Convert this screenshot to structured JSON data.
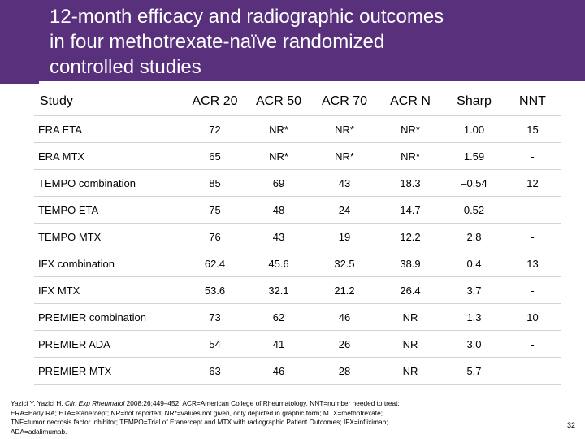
{
  "title": {
    "lines": [
      "12-month efficacy and radiographic outcomes",
      "in four methotrexate-naïve randomized",
      "controlled studies"
    ]
  },
  "colors": {
    "title_bar": "#58307c",
    "row_rule": "#d3d3d3"
  },
  "table": {
    "headers": [
      "Study",
      "ACR 20",
      "ACR 50",
      "ACR 70",
      "ACR N",
      "Sharp",
      "NNT"
    ],
    "rows": [
      [
        "ERA ETA",
        "72",
        "NR*",
        "NR*",
        "NR*",
        "1.00",
        "15"
      ],
      [
        "ERA MTX",
        "65",
        "NR*",
        "NR*",
        "NR*",
        "1.59",
        "-"
      ],
      [
        "TEMPO combination",
        "85",
        "69",
        "43",
        "18.3",
        "–0.54",
        "12"
      ],
      [
        "TEMPO ETA",
        "75",
        "48",
        "24",
        "14.7",
        "0.52",
        "-"
      ],
      [
        "TEMPO MTX",
        "76",
        "43",
        "19",
        "12.2",
        "2.8",
        "-"
      ],
      [
        "IFX combination",
        "62.4",
        "45.6",
        "32.5",
        "38.9",
        "0.4",
        "13"
      ],
      [
        "IFX MTX",
        "53.6",
        "32.1",
        "21.2",
        "26.4",
        "3.7",
        "-"
      ],
      [
        "PREMIER combination",
        "73",
        "62",
        "46",
        "NR",
        "1.3",
        "10"
      ],
      [
        "PREMIER ADA",
        "54",
        "41",
        "26",
        "NR",
        "3.0",
        "-"
      ],
      [
        "PREMIER MTX",
        "63",
        "46",
        "28",
        "NR",
        "5.7",
        "-"
      ]
    ]
  },
  "footnote": {
    "citation_authors": "Yazici Y, Yazici H. ",
    "citation_journal": "Clin Exp Rheumatol",
    "citation_rest": " 2008;26:449–452. ACR=American College of Rheumatology, NNT=number needed to treat; ERA=Early RA; ETA=etanercept; NR=not reported; NR*=values not given, only depicted in graphic form; MTX=methotrexate; TNF=tumor necrosis factor inhibitor; TEMPO=Trial of Etanercept and MTX with radiographic Patient Outcomes; IFX=infliximab; ADA=adalimumab."
  },
  "page_number": "32"
}
